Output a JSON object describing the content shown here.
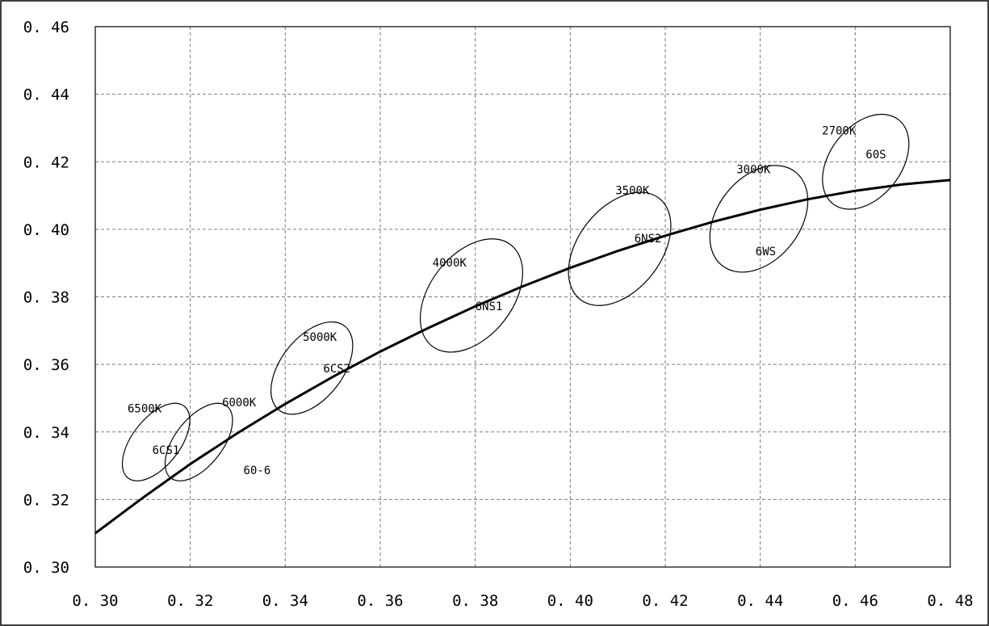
{
  "chart_data": {
    "type": "scatter",
    "title": "",
    "xlabel": "",
    "ylabel": "",
    "xlim": [
      0.3,
      0.48
    ],
    "ylim": [
      0.3,
      0.46
    ],
    "x_tick_labels": [
      "0. 30",
      "0. 32",
      "0. 34",
      "0. 36",
      "0. 38",
      "0. 40",
      "0. 42",
      "0. 44",
      "0. 46",
      "0. 48"
    ],
    "y_tick_labels": [
      "0. 30",
      "0. 32",
      "0. 34",
      "0. 36",
      "0. 38",
      "0. 40",
      "0. 42",
      "0. 44",
      "0. 46"
    ],
    "x_ticks": [
      0.3,
      0.32,
      0.34,
      0.36,
      0.38,
      0.4,
      0.42,
      0.44,
      0.46,
      0.48
    ],
    "y_ticks": [
      0.3,
      0.32,
      0.34,
      0.36,
      0.38,
      0.4,
      0.42,
      0.44,
      0.46
    ],
    "grid": true,
    "curve": {
      "x": [
        0.3,
        0.31,
        0.32,
        0.33,
        0.34,
        0.35,
        0.36,
        0.37,
        0.38,
        0.39,
        0.4,
        0.41,
        0.42,
        0.43,
        0.44,
        0.45,
        0.46,
        0.47,
        0.48
      ],
      "y": [
        0.31,
        0.3205,
        0.3305,
        0.3397,
        0.3483,
        0.3563,
        0.3638,
        0.3707,
        0.3772,
        0.3831,
        0.3886,
        0.3936,
        0.3981,
        0.4022,
        0.4058,
        0.4089,
        0.4114,
        0.4133,
        0.4146
      ]
    },
    "ellipses": [
      {
        "cx": 0.3128,
        "cy": 0.337,
        "rx": 0.005,
        "ry": 0.0135,
        "tilt": 38
      },
      {
        "cx": 0.3218,
        "cy": 0.337,
        "rx": 0.005,
        "ry": 0.0135,
        "tilt": 38
      },
      {
        "cx": 0.3456,
        "cy": 0.3589,
        "rx": 0.0065,
        "ry": 0.0158,
        "tilt": 38
      },
      {
        "cx": 0.3792,
        "cy": 0.3804,
        "rx": 0.0087,
        "ry": 0.019,
        "tilt": 38
      },
      {
        "cx": 0.4104,
        "cy": 0.3942,
        "rx": 0.0087,
        "ry": 0.019,
        "tilt": 38
      },
      {
        "cx": 0.4397,
        "cy": 0.4031,
        "rx": 0.0087,
        "ry": 0.0176,
        "tilt": 38
      },
      {
        "cx": 0.4622,
        "cy": 0.42,
        "rx": 0.0075,
        "ry": 0.0158,
        "tilt": 38
      }
    ],
    "annotations": [
      {
        "text": "6500K",
        "x": 0.3068,
        "y": 0.347
      },
      {
        "text": "6CS1",
        "x": 0.312,
        "y": 0.3347
      },
      {
        "text": "6000K",
        "x": 0.3267,
        "y": 0.3488
      },
      {
        "text": "60-6",
        "x": 0.3312,
        "y": 0.3287
      },
      {
        "text": "5000K",
        "x": 0.3437,
        "y": 0.3682
      },
      {
        "text": "6CS2",
        "x": 0.348,
        "y": 0.3588
      },
      {
        "text": "4000K",
        "x": 0.371,
        "y": 0.3902
      },
      {
        "text": "6NS1",
        "x": 0.38,
        "y": 0.3773
      },
      {
        "text": "3500K",
        "x": 0.4095,
        "y": 0.4116
      },
      {
        "text": "6NS2",
        "x": 0.4135,
        "y": 0.3973
      },
      {
        "text": "3000K",
        "x": 0.435,
        "y": 0.4178
      },
      {
        "text": "6WS",
        "x": 0.439,
        "y": 0.3935
      },
      {
        "text": "2700K",
        "x": 0.453,
        "y": 0.4293
      },
      {
        "text": "60S",
        "x": 0.4622,
        "y": 0.4222
      }
    ]
  }
}
